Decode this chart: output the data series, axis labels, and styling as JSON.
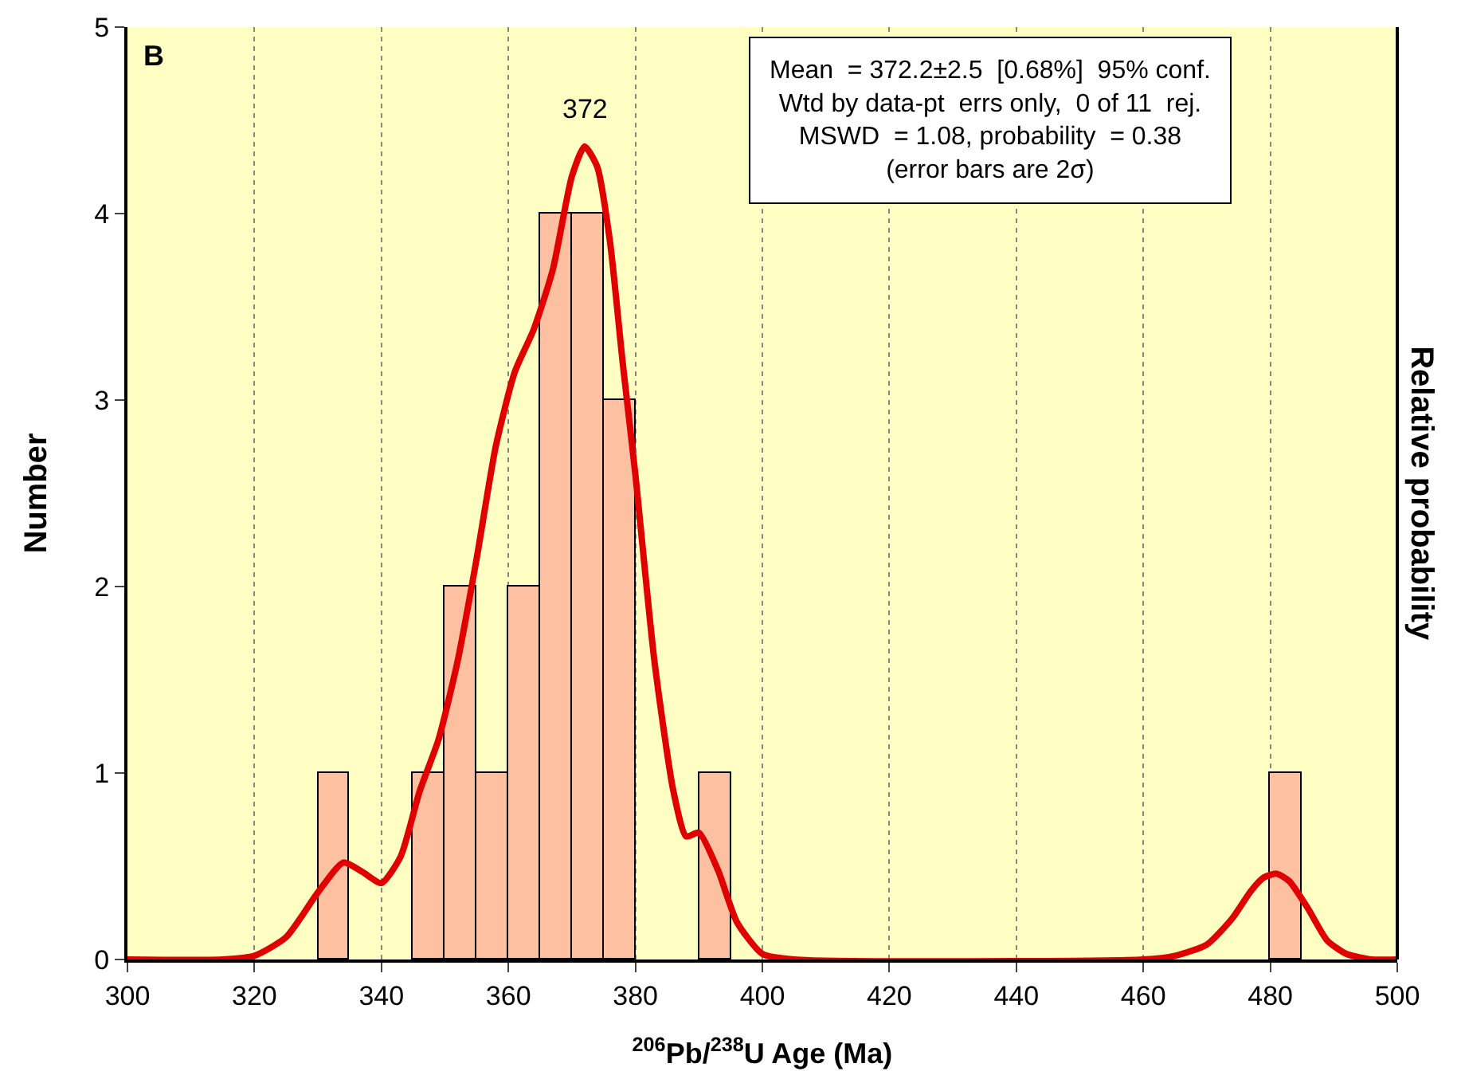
{
  "chart_data": {
    "type": "histogram",
    "xlabel": "$^{206}$Pb/$^{238}$U Age (Ma)",
    "ylabel": "Number",
    "y2label": "Relative probability",
    "bins": [
      330,
      335,
      340,
      345,
      350,
      355,
      360,
      365,
      370,
      375,
      380,
      385,
      390,
      395,
      400,
      405,
      410,
      415,
      420,
      425,
      430,
      435,
      440,
      445,
      450,
      455,
      460,
      465,
      470,
      475,
      480,
      485
    ],
    "values": [
      1,
      0,
      0,
      1,
      2,
      1,
      2,
      4,
      4,
      3,
      0,
      0,
      1,
      0,
      0,
      0,
      0,
      0,
      0,
      0,
      0,
      0,
      0,
      0,
      0,
      0,
      0,
      0,
      0,
      0,
      1
    ],
    "color": "#fdc0a0",
    "series": [
      {
        "type": "line",
        "color": "#e00000",
        "x": [
          300,
          315,
          320,
          325,
          330,
          334,
          337,
          340,
          343,
          346,
          349,
          352,
          355,
          358,
          361,
          364,
          367,
          370,
          372,
          374,
          376,
          378,
          380,
          383,
          386,
          388,
          390,
          393,
          396,
          400,
          405,
          460,
          465,
          470,
          474,
          477,
          479,
          481,
          483,
          486,
          489,
          492,
          496,
          500
        ],
        "values": [
          0,
          0,
          0.02,
          0.12,
          0.36,
          0.52,
          0.47,
          0.41,
          0.55,
          0.9,
          1.18,
          1.6,
          2.15,
          2.75,
          3.15,
          3.38,
          3.7,
          4.2,
          4.36,
          4.25,
          3.85,
          3.2,
          2.6,
          1.6,
          0.9,
          0.66,
          0.68,
          0.48,
          0.2,
          0.03,
          0,
          0,
          0.02,
          0.08,
          0.22,
          0.37,
          0.44,
          0.46,
          0.42,
          0.27,
          0.1,
          0.03,
          0,
          0
        ]
      }
    ],
    "xlim": [
      300,
      500
    ],
    "xticks": [
      300,
      320,
      340,
      360,
      380,
      400,
      420,
      440,
      460,
      480,
      500
    ],
    "ylim": [
      0,
      5
    ],
    "yticks": [
      0,
      1,
      2,
      3,
      4,
      5
    ],
    "grid": "x",
    "annotations": [
      "B",
      {
        "text": "372",
        "x": 372,
        "y": 4.36
      },
      "Mean  = 372.2±2.5  [0.68%]  95% conf.\nWtd by data-pt  errs only,  0 of 11  rej.\nMSWD  = 1.08, probability  = 0.38\n(error bars are 2σ)"
    ]
  }
}
